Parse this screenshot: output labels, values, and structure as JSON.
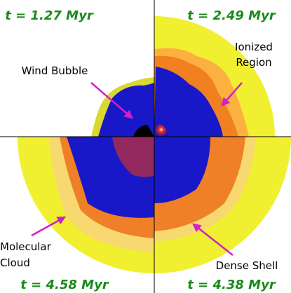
{
  "panels": [
    {
      "time": "t = 1.27 Myr"
    },
    {
      "time": "t = 2.49 Myr"
    },
    {
      "time": "t = 4.58 Myr"
    },
    {
      "time": "t = 4.38 Myr"
    }
  ],
  "labels": [
    {
      "lines": [
        "Wind Bubble"
      ]
    },
    {
      "lines": [
        "Ionized",
        "Region"
      ]
    },
    {
      "lines": [
        "Molecular",
        "Cloud"
      ]
    },
    {
      "lines": [
        "Dense Shell"
      ]
    }
  ]
}
